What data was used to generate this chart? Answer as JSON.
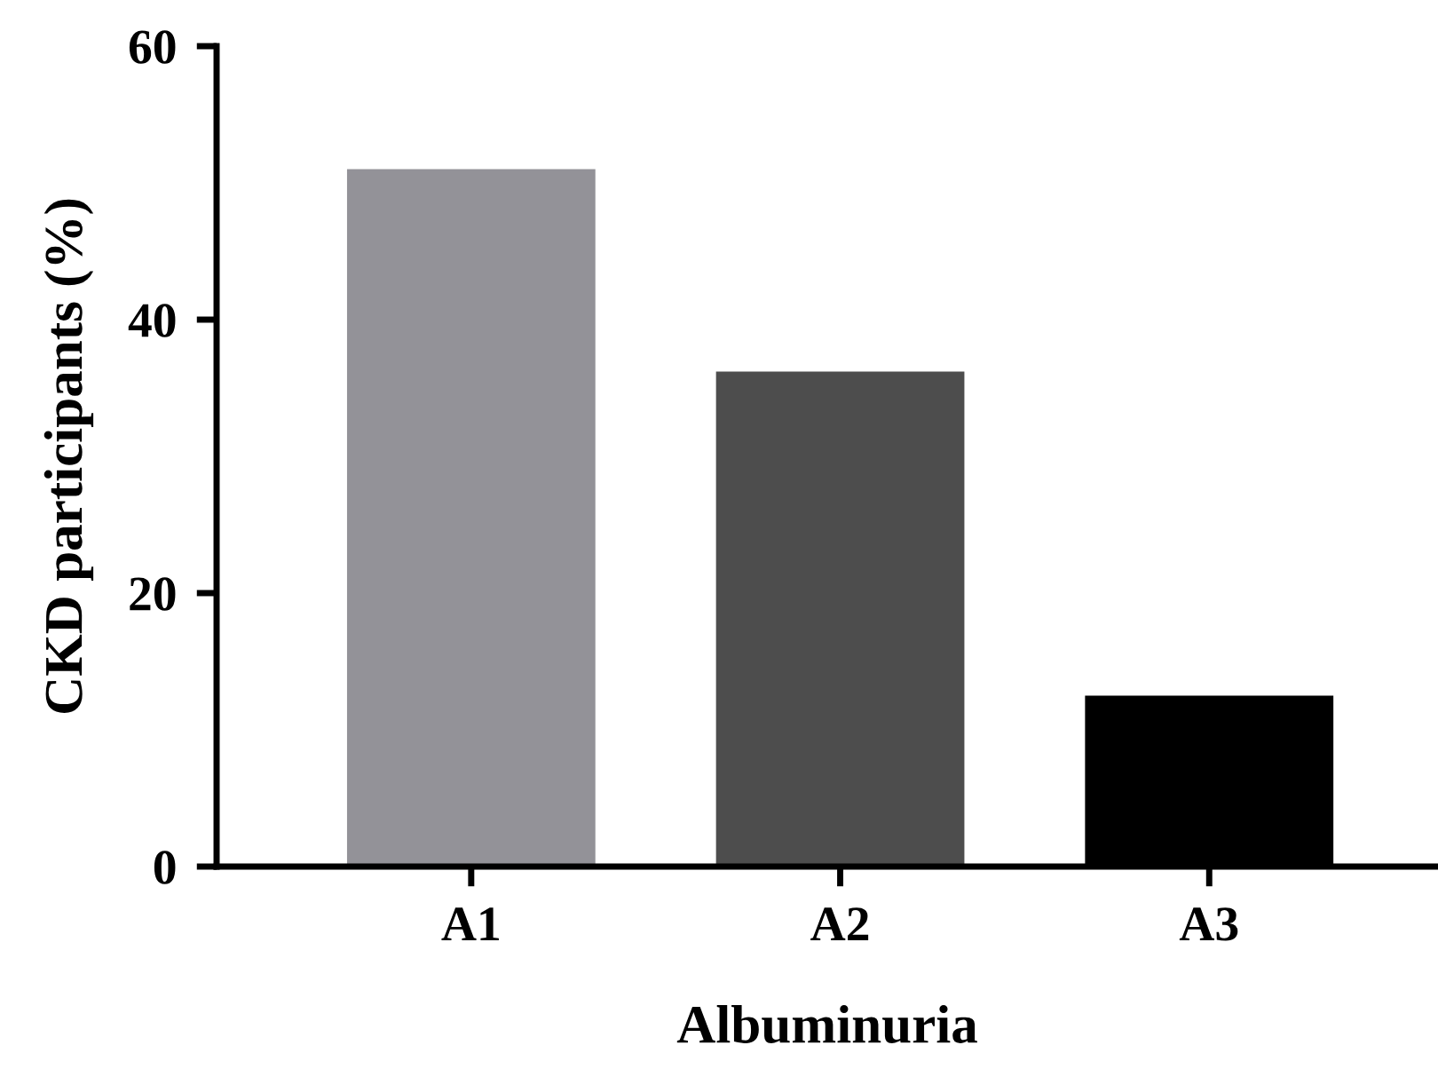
{
  "chart_data": {
    "type": "bar",
    "xlabel": "Albuminuria",
    "ylabel": "CKD participants (%)",
    "categories": [
      "A1",
      "A2",
      "A3"
    ],
    "values": [
      51,
      36.2,
      12.5
    ],
    "colors": [
      "#939298",
      "#4d4d4d",
      "#000000"
    ],
    "ylim": [
      0,
      60
    ],
    "yticks": [
      0,
      20,
      40,
      60
    ],
    "grid": false,
    "legend": false
  }
}
